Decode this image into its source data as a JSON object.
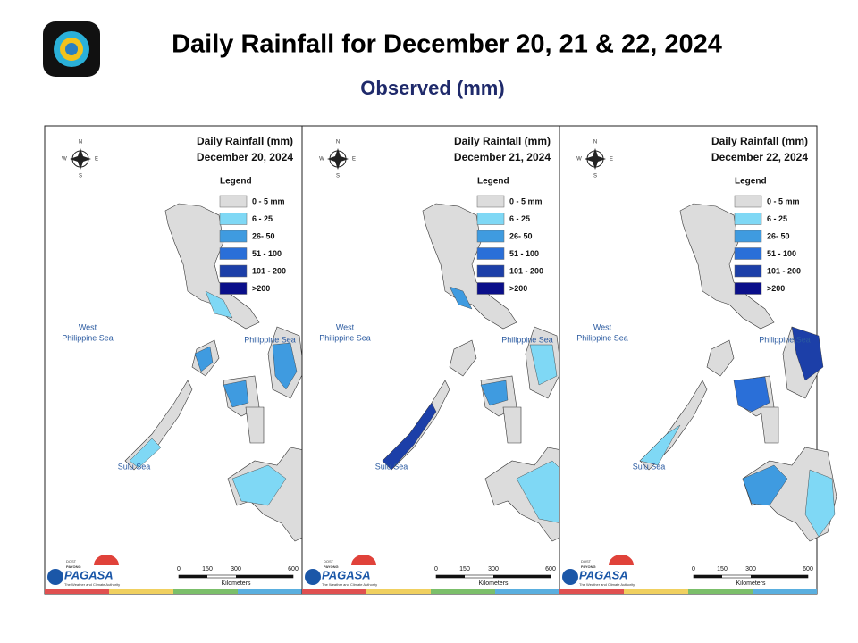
{
  "header": {
    "title": "Daily Rainfall for December 20, 21 & 22, 2024",
    "subtitle": "Observed (mm)"
  },
  "panels": [
    {
      "heading": "Daily Rainfall (mm)",
      "date": "December 20, 2024",
      "legend_title": "Legend",
      "legend": [
        {
          "label": "0 - 5 mm",
          "color": "#dcdcdc"
        },
        {
          "label": "6 - 25",
          "color": "#7fd8f5"
        },
        {
          "label": "26- 50",
          "color": "#3f9be0"
        },
        {
          "label": "51 - 100",
          "color": "#2a6fd8"
        },
        {
          "label": "101 - 200",
          "color": "#1c3fa8"
        },
        {
          "label": ">200",
          "color": "#0a0f8a"
        }
      ],
      "compass": [
        "N",
        "S",
        "E",
        "W"
      ],
      "seas": {
        "west": [
          "West",
          "Philippine Sea"
        ],
        "east": "Philippine Sea",
        "sulu": "Sulu Sea"
      },
      "scale": {
        "ticks": [
          "0",
          "150",
          "300",
          "600"
        ],
        "unit": "Kilometers"
      },
      "logo": {
        "top": "DOST",
        "mid": "PAYONG",
        "name": "PAGASA",
        "tagline": "The Weather and Climate Authority"
      }
    },
    {
      "heading": "Daily Rainfall (mm)",
      "date": "December 21, 2024",
      "legend_title": "Legend",
      "legend": [
        {
          "label": "0 - 5 mm",
          "color": "#dcdcdc"
        },
        {
          "label": "6 - 25",
          "color": "#7fd8f5"
        },
        {
          "label": "26- 50",
          "color": "#3f9be0"
        },
        {
          "label": "51 - 100",
          "color": "#2a6fd8"
        },
        {
          "label": "101 - 200",
          "color": "#1c3fa8"
        },
        {
          "label": ">200",
          "color": "#0a0f8a"
        }
      ],
      "compass": [
        "N",
        "S",
        "E",
        "W"
      ],
      "seas": {
        "west": [
          "West",
          "Philippine Sea"
        ],
        "east": "Philippine Sea",
        "sulu": "Sulu Sea"
      },
      "scale": {
        "ticks": [
          "0",
          "150",
          "300",
          "600"
        ],
        "unit": "Kilometers"
      },
      "logo": {
        "top": "DOST",
        "mid": "PAYONG",
        "name": "PAGASA",
        "tagline": "The Weather and Climate Authority"
      }
    },
    {
      "heading": "Daily Rainfall (mm)",
      "date": "December 22, 2024",
      "legend_title": "Legend",
      "legend": [
        {
          "label": "0 - 5 mm",
          "color": "#dcdcdc"
        },
        {
          "label": "6 - 25",
          "color": "#7fd8f5"
        },
        {
          "label": "26- 50",
          "color": "#3f9be0"
        },
        {
          "label": "51 - 100",
          "color": "#2a6fd8"
        },
        {
          "label": "101 - 200",
          "color": "#1c3fa8"
        },
        {
          "label": ">200",
          "color": "#0a0f8a"
        }
      ],
      "compass": [
        "N",
        "S",
        "E",
        "W"
      ],
      "seas": {
        "west": [
          "West",
          "Philippine Sea"
        ],
        "east": "Philippine Sea",
        "sulu": "Sulu Sea"
      },
      "scale": {
        "ticks": [
          "0",
          "150",
          "300",
          "600"
        ],
        "unit": "Kilometers"
      },
      "logo": {
        "top": "DOST",
        "mid": "PAYONG",
        "name": "PAGASA",
        "tagline": "The Weather and Climate Authority"
      }
    }
  ]
}
